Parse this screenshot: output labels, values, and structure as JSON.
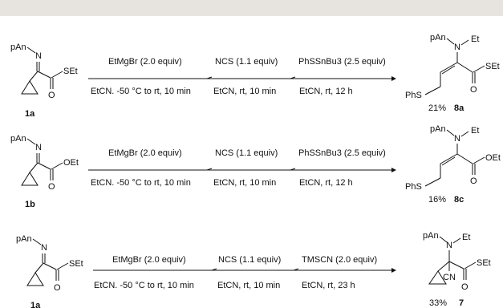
{
  "rows": [
    {
      "start": {
        "aryl": "pAn",
        "ester": "SEt",
        "id": "1a"
      },
      "steps": [
        {
          "reagent": "EtMgBr (2.0 equiv)",
          "conditions": "EtCN. -50 °C to rt, 10 min"
        },
        {
          "reagent": "NCS (1.1 equiv)",
          "conditions": "EtCN, rt, 10 min"
        },
        {
          "reagent": "PhSSnBu3 (2.5 equiv)",
          "conditions": "EtCN, rt, 12 h"
        }
      ],
      "product": {
        "aryl": "pAn",
        "amine": "N",
        "alkyl": "Et",
        "ester": "SEt",
        "thio": "PhS",
        "yield": "21%",
        "id": "8a"
      }
    },
    {
      "start": {
        "aryl": "pAn",
        "ester": "OEt",
        "id": "1b"
      },
      "steps": [
        {
          "reagent": "EtMgBr (2.0 equiv)",
          "conditions": "EtCN. -50 °C to rt, 10 min"
        },
        {
          "reagent": "NCS (1.1 equiv)",
          "conditions": "EtCN, rt, 10 min"
        },
        {
          "reagent": "PhSSnBu3 (2.5 equiv)",
          "conditions": "EtCN, rt, 12 h"
        }
      ],
      "product": {
        "aryl": "pAn",
        "amine": "N",
        "alkyl": "Et",
        "ester": "OEt",
        "thio": "PhS",
        "yield": "16%",
        "id": "8c"
      }
    },
    {
      "start": {
        "aryl": "pAn",
        "ester": "SEt",
        "id": "1a"
      },
      "steps": [
        {
          "reagent": "EtMgBr (2.0 equiv)",
          "conditions": "EtCN. -50 °C to rt, 10 min"
        },
        {
          "reagent": "NCS (1.1 equiv)",
          "conditions": "EtCN, rt, 10 min"
        },
        {
          "reagent": "TMSCN (2.0 equiv)",
          "conditions": "EtCN, rt, 23 h"
        }
      ],
      "product": {
        "aryl": "pAn",
        "amine": "N",
        "alkyl": "Et",
        "ester": "SEt",
        "cyano": "CN",
        "yield": "33%",
        "id": "7"
      }
    }
  ]
}
